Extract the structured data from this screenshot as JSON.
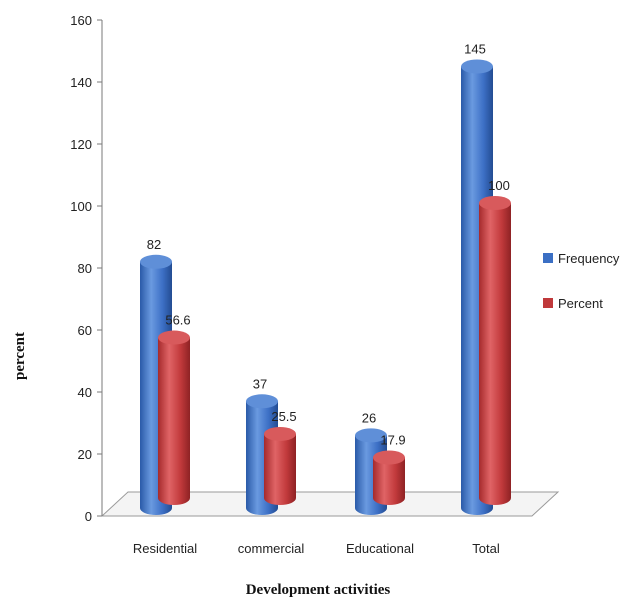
{
  "chart_data": {
    "type": "bar",
    "categories": [
      "Residential",
      "commercial",
      "Educational",
      "Total"
    ],
    "series": [
      {
        "name": "Frequency",
        "values": [
          82,
          37,
          26,
          145
        ],
        "labels": [
          "82",
          "37",
          "26",
          "145"
        ],
        "color": "#3b6fc4"
      },
      {
        "name": "Percent",
        "values": [
          56.6,
          25.5,
          17.9,
          100
        ],
        "labels": [
          "56.6",
          "25.5",
          "17.9",
          "100"
        ],
        "color": "#c0393b"
      }
    ],
    "xlabel": "Development activities",
    "ylabel": "percent",
    "ylim": [
      0,
      160
    ],
    "yticks": [
      "0",
      "20",
      "40",
      "60",
      "80",
      "100",
      "120",
      "140",
      "160"
    ],
    "legend_position": "right",
    "grid": false,
    "style": "3d-cylinder"
  }
}
